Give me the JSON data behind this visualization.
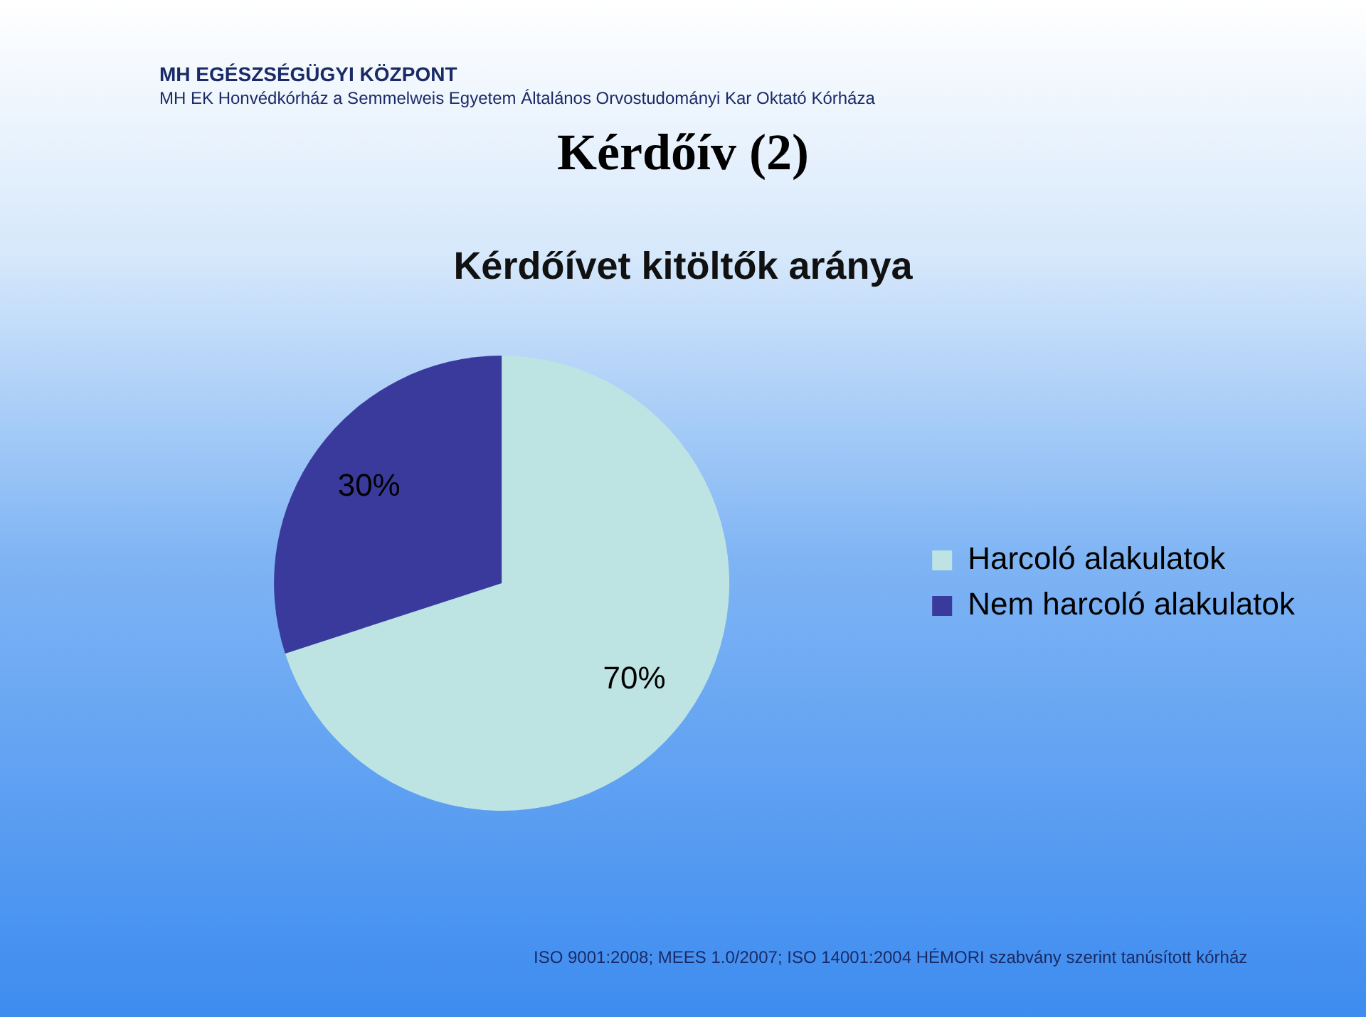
{
  "chart_data": {
    "type": "pie",
    "title": "Kérdőív (2)",
    "subtitle": "Kérdőívet kitöltők aránya",
    "categories": [
      "Harcoló alakulatok",
      "Nem harcoló alakulatok"
    ],
    "values": [
      70,
      30
    ],
    "colors": [
      "#bde3e3",
      "#3a3a9c"
    ],
    "value_labels": [
      "70%",
      "30%"
    ],
    "legend": "right",
    "annotations": [
      "MH EGÉSZSÉGÜGYI KÖZPONT",
      "MH EK Honvédkórház a Semmelweis Egyetem Általános Orvostudományi Kar Oktató Kórháza",
      "ISO 9001:2008; MEES 1.0/2007; ISO 14001:2004 HÉMORI szabvány szerint tanúsított kórház"
    ]
  }
}
